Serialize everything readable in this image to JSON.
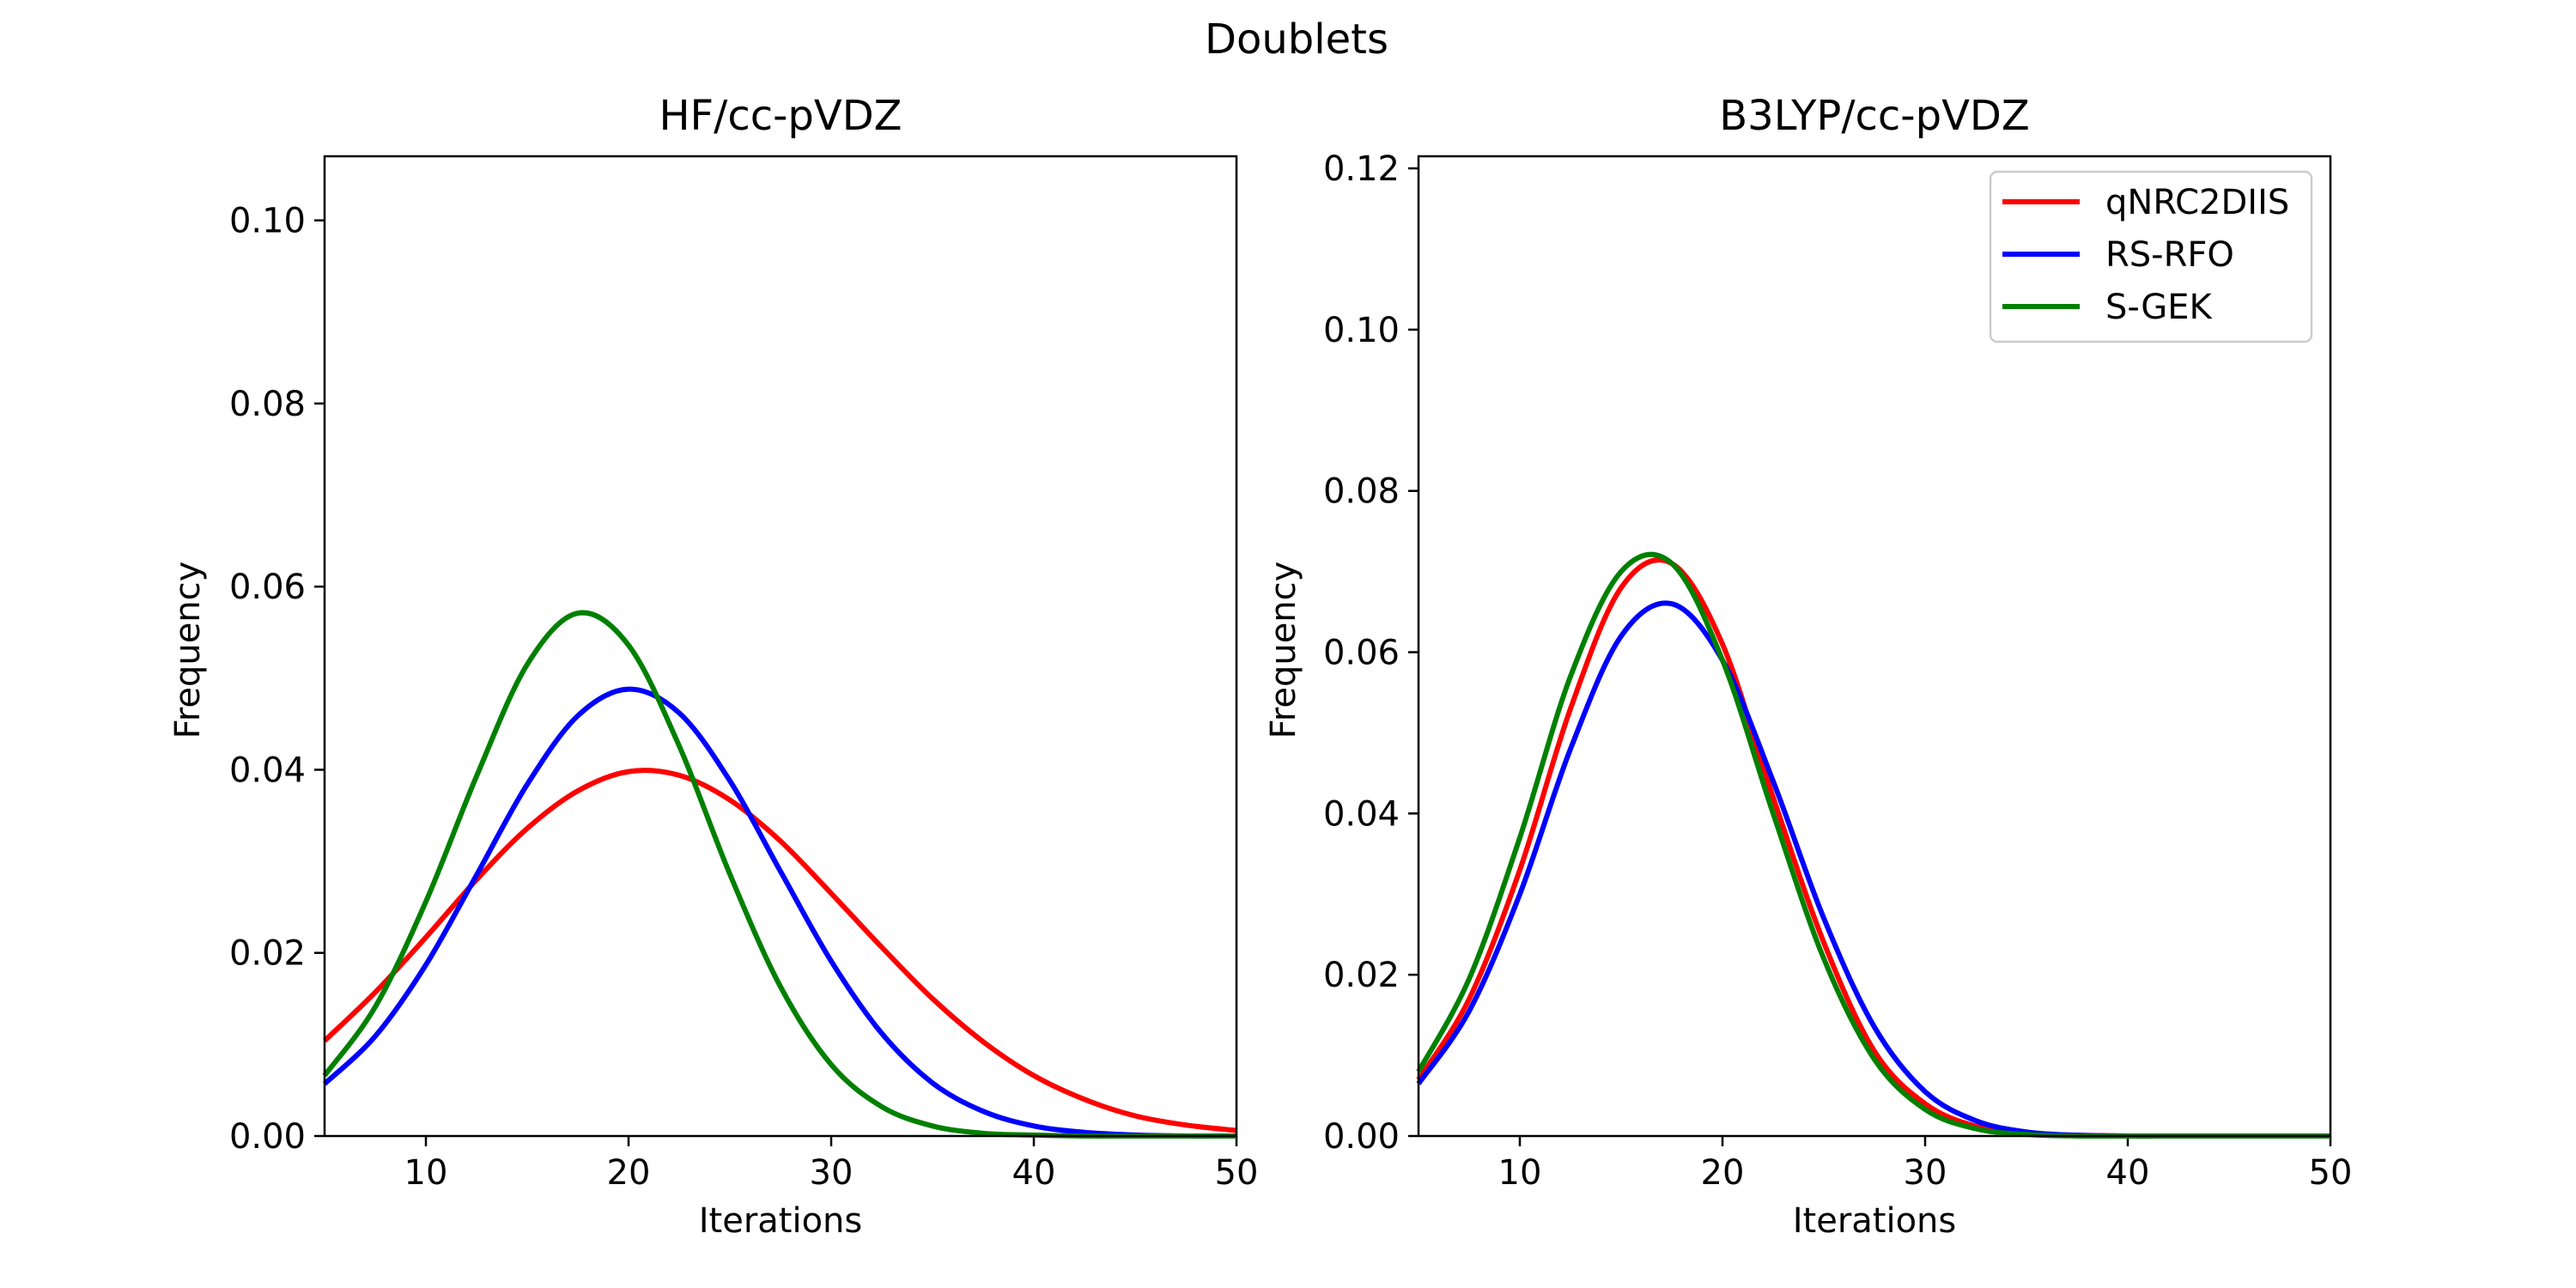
{
  "figure": {
    "title": "Doublets"
  },
  "colors": {
    "qNRC2DIIS": "#ff0000",
    "RS-RFO": "#0000ff",
    "S-GEK": "#008000"
  },
  "chart_data": [
    {
      "type": "line",
      "title": "HF/cc-pVDZ",
      "xlabel": "Iterations",
      "ylabel": "Frequency",
      "xlim": [
        5,
        50
      ],
      "ylim": [
        0,
        0.107
      ],
      "xticks": [
        10,
        20,
        30,
        40,
        50
      ],
      "xtick_labels": [
        "10",
        "20",
        "30",
        "40",
        "50"
      ],
      "yticks": [
        0,
        0.02,
        0.04,
        0.06,
        0.08,
        0.1
      ],
      "ytick_labels": [
        "0.00",
        "0.02",
        "0.04",
        "0.06",
        "0.08",
        "0.10"
      ],
      "grid": false,
      "legend": null,
      "x": [
        5,
        7.5,
        10,
        12.5,
        15,
        17.5,
        20,
        22.5,
        25,
        27.5,
        30,
        32.5,
        35,
        37.5,
        40,
        42.5,
        45,
        47.5,
        50
      ],
      "series": [
        {
          "name": "qNRC2DIIS",
          "color": "#ff0000",
          "values": [
            0.0104,
            0.0157,
            0.0217,
            0.028,
            0.0336,
            0.0377,
            0.0398,
            0.0394,
            0.0367,
            0.0322,
            0.0265,
            0.0206,
            0.015,
            0.0103,
            0.0066,
            0.004,
            0.0022,
            0.0012,
            0.0006
          ]
        },
        {
          "name": "RS-RFO",
          "color": "#0000ff",
          "values": [
            0.0057,
            0.0109,
            0.0187,
            0.0285,
            0.0384,
            0.0459,
            0.0488,
            0.0462,
            0.0388,
            0.0289,
            0.0191,
            0.0112,
            0.0058,
            0.0027,
            0.0011,
            0.0004,
            0.0001,
            0.0,
            0.0
          ]
        },
        {
          "name": "S-GEK",
          "color": "#008000",
          "values": [
            0.0066,
            0.0141,
            0.0256,
            0.0393,
            0.0515,
            0.0571,
            0.0536,
            0.0426,
            0.0286,
            0.0163,
            0.0078,
            0.0032,
            0.0011,
            0.0003,
            0.0001,
            0.0,
            0.0,
            0.0,
            0.0
          ]
        }
      ]
    },
    {
      "type": "line",
      "title": "B3LYP/cc-pVDZ",
      "xlabel": "Iterations",
      "ylabel": "Frequency",
      "xlim": [
        5,
        50
      ],
      "ylim": [
        0,
        0.1215
      ],
      "xticks": [
        10,
        20,
        30,
        40,
        50
      ],
      "xtick_labels": [
        "10",
        "20",
        "30",
        "40",
        "50"
      ],
      "yticks": [
        0,
        0.02,
        0.04,
        0.06,
        0.08,
        0.1,
        0.12
      ],
      "ytick_labels": [
        "0.00",
        "0.02",
        "0.04",
        "0.06",
        "0.08",
        "0.10",
        "0.12"
      ],
      "grid": false,
      "legend": "top-right",
      "x": [
        5,
        7.5,
        10,
        12.5,
        15,
        17.5,
        20,
        22.5,
        25,
        27.5,
        30,
        32.5,
        35,
        37.5,
        40,
        42.5,
        45,
        47.5,
        50
      ],
      "series": [
        {
          "name": "qNRC2DIIS",
          "color": "#ff0000",
          "values": [
            0.007,
            0.017,
            0.033,
            0.053,
            0.068,
            0.071,
            0.061,
            0.042,
            0.024,
            0.0105,
            0.004,
            0.0012,
            0.0003,
            0.0001,
            0.0,
            0.0,
            0.0,
            0.0,
            0.0
          ]
        },
        {
          "name": "RS-RFO",
          "color": "#0000ff",
          "values": [
            0.0065,
            0.0155,
            0.03,
            0.048,
            0.062,
            0.066,
            0.059,
            0.044,
            0.027,
            0.0135,
            0.0055,
            0.0019,
            0.0005,
            0.0001,
            0.0,
            0.0,
            0.0,
            0.0,
            0.0
          ]
        },
        {
          "name": "S-GEK",
          "color": "#008000",
          "values": [
            0.008,
            0.0195,
            0.037,
            0.057,
            0.07,
            0.071,
            0.059,
            0.04,
            0.022,
            0.0095,
            0.0033,
            0.0009,
            0.0002,
            0.0,
            0.0,
            0.0,
            0.0,
            0.0,
            0.0
          ]
        }
      ]
    }
  ]
}
